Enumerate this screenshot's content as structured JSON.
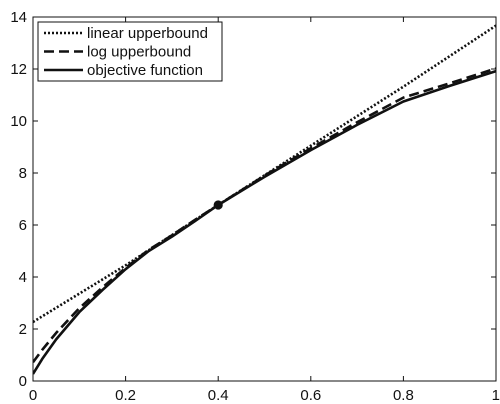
{
  "chart_data": {
    "type": "line",
    "title": "",
    "xlabel": "",
    "ylabel": "",
    "xlim": [
      0,
      1
    ],
    "ylim": [
      0,
      14
    ],
    "x_ticks": [
      "0",
      "0.2",
      "0.4",
      "0.6",
      "0.8",
      "1"
    ],
    "y_ticks": [
      "0",
      "2",
      "4",
      "6",
      "8",
      "10",
      "12",
      "14"
    ],
    "grid": false,
    "legend_position": "top-left",
    "series": [
      {
        "name": "linear upperbound",
        "style": "dotted",
        "color": "#111111",
        "x": [
          0,
          0.2,
          0.4,
          0.6,
          0.8,
          1.0
        ],
        "y": [
          2.27,
          4.45,
          6.77,
          9.05,
          11.32,
          13.67
        ]
      },
      {
        "name": "log upperbound",
        "style": "dashed",
        "color": "#111111",
        "x": [
          0,
          0.02,
          0.05,
          0.1,
          0.15,
          0.2,
          0.25,
          0.3,
          0.35,
          0.4,
          0.5,
          0.6,
          0.7,
          0.8,
          0.9,
          1.0
        ],
        "y": [
          0.72,
          1.2,
          1.85,
          2.8,
          3.6,
          4.35,
          5.05,
          5.6,
          6.2,
          6.77,
          7.9,
          8.95,
          9.95,
          10.9,
          11.45,
          12.02
        ]
      },
      {
        "name": "objective function",
        "style": "solid",
        "color": "#111111",
        "x": [
          0,
          0.02,
          0.05,
          0.1,
          0.15,
          0.2,
          0.25,
          0.3,
          0.35,
          0.4,
          0.5,
          0.6,
          0.7,
          0.8,
          0.9,
          1.0
        ],
        "y": [
          0.27,
          0.85,
          1.6,
          2.65,
          3.5,
          4.3,
          5.0,
          5.55,
          6.15,
          6.77,
          7.85,
          8.88,
          9.85,
          10.75,
          11.35,
          11.92
        ]
      }
    ],
    "marker": {
      "x": 0.4,
      "y": 6.77,
      "shape": "circle"
    }
  }
}
